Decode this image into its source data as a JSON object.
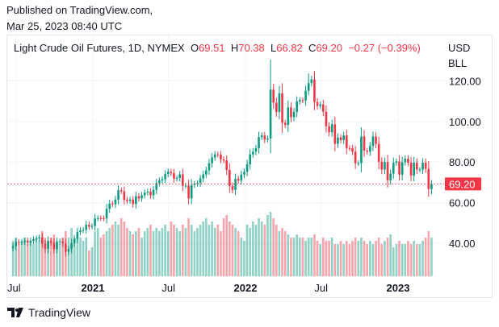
{
  "published": {
    "line1": "Published on TradingView.com,",
    "line2": "Mar 25, 2023 08:40 UTC"
  },
  "legend": {
    "symbol": "Light Crude Oil Futures, 1D, NYMEX",
    "o_label": "O",
    "o": "69.51",
    "h_label": "H",
    "h": "70.38",
    "l_label": "L",
    "l": "66.82",
    "c_label": "C",
    "c": "69.20",
    "change": "−0.27 (−0.39%)"
  },
  "units": {
    "currency": "USD",
    "unit": "BLL"
  },
  "brand": "TradingView",
  "colors": {
    "up": "#089981",
    "down": "#f23645",
    "grid": "#f0f3fa"
  },
  "chart_data": {
    "type": "candlestick",
    "title": "Light Crude Oil Futures, 1D, NYMEX",
    "ylim": [
      30,
      135
    ],
    "y_ticks": [
      {
        "value": 40,
        "label": "40.00"
      },
      {
        "value": 60,
        "label": "60.00"
      },
      {
        "value": 80,
        "label": "80.00"
      },
      {
        "value": 100,
        "label": "100.00"
      },
      {
        "value": 120,
        "label": "120.00"
      }
    ],
    "x_ticks": [
      {
        "date": "2020-07-01",
        "label": "Jul",
        "bold": false
      },
      {
        "date": "2021-01-01",
        "label": "2021",
        "bold": true
      },
      {
        "date": "2021-07-01",
        "label": "Jul",
        "bold": false
      },
      {
        "date": "2022-01-01",
        "label": "2022",
        "bold": true
      },
      {
        "date": "2022-07-01",
        "label": "Jul",
        "bold": false
      },
      {
        "date": "2023-01-01",
        "label": "2023",
        "bold": true
      }
    ],
    "last_price": {
      "value": 69.2,
      "label": "69.20"
    },
    "start_date": "2020-06-26",
    "interval_days": 7,
    "close": [
      38.5,
      40.6,
      40.5,
      40.6,
      41.3,
      40.3,
      41.2,
      42.0,
      42.3,
      42.9,
      39.8,
      37.3,
      41.1,
      40.3,
      37.1,
      40.6,
      40.9,
      39.9,
      35.8,
      37.1,
      40.1,
      42.2,
      45.5,
      46.3,
      46.6,
      49.1,
      48.2,
      48.5,
      52.2,
      52.4,
      52.3,
      52.2,
      56.9,
      59.5,
      59.2,
      61.5,
      66.1,
      65.6,
      61.4,
      60.9,
      61.5,
      59.3,
      63.1,
      62.1,
      63.6,
      64.9,
      65.4,
      63.6,
      66.3,
      69.6,
      70.9,
      71.6,
      74.1,
      75.2,
      74.6,
      71.8,
      72.1,
      73.9,
      68.3,
      68.4,
      62.1,
      68.7,
      69.3,
      69.7,
      71.9,
      73.9,
      75.9,
      79.4,
      82.3,
      83.8,
      83.6,
      81.3,
      80.8,
      76.1,
      68.2,
      66.3,
      71.7,
      70.9,
      73.8,
      75.2,
      78.9,
      83.8,
      85.1,
      86.8,
      92.3,
      93.1,
      91.1,
      91.6,
      115.7,
      109.3,
      104.7,
      113.9,
      99.3,
      98.3,
      106.9,
      102.1,
      104.7,
      109.8,
      110.5,
      110.3,
      115.1,
      118.9,
      120.7,
      109.6,
      107.6,
      108.4,
      104.8,
      97.6,
      94.7,
      98.6,
      89.0,
      92.1,
      90.8,
      93.1,
      86.9,
      86.8,
      85.1,
      79.4,
      79.5,
      92.6,
      85.6,
      85.1,
      87.9,
      92.6,
      89.0,
      80.1,
      76.3,
      80.0,
      71.0,
      74.3,
      79.6,
      80.3,
      73.8,
      79.9,
      81.6,
      79.7,
      73.4,
      79.7,
      76.3,
      76.3,
      79.7,
      76.7,
      66.7,
      69.2
    ],
    "high_overrides": {
      "88": 130.5,
      "101": 123.7
    },
    "low_overrides": {
      "143": 64.1
    },
    "volume_relative": [
      0.55,
      0.6,
      0.5,
      0.55,
      0.6,
      0.5,
      0.55,
      0.5,
      0.6,
      0.55,
      0.7,
      0.6,
      0.55,
      0.6,
      0.65,
      0.55,
      0.5,
      0.6,
      0.7,
      0.6,
      0.75,
      0.6,
      0.65,
      0.6,
      0.55,
      0.6,
      0.4,
      0.45,
      0.7,
      0.75,
      0.6,
      0.65,
      0.7,
      0.75,
      0.8,
      0.85,
      0.8,
      0.9,
      0.85,
      0.75,
      0.7,
      0.65,
      0.7,
      0.75,
      0.6,
      0.7,
      0.75,
      0.8,
      0.7,
      0.75,
      0.7,
      0.75,
      0.8,
      0.7,
      0.85,
      0.8,
      0.75,
      0.7,
      0.8,
      0.75,
      0.9,
      0.8,
      0.7,
      0.75,
      0.8,
      0.85,
      0.9,
      0.8,
      0.85,
      0.75,
      0.8,
      0.7,
      0.9,
      0.95,
      0.85,
      0.8,
      0.75,
      0.7,
      0.6,
      0.55,
      0.8,
      0.75,
      0.85,
      0.8,
      0.9,
      0.85,
      0.8,
      0.95,
      1.0,
      0.9,
      0.8,
      0.7,
      0.75,
      0.7,
      0.65,
      0.6,
      0.6,
      0.65,
      0.6,
      0.6,
      0.55,
      0.6,
      0.6,
      0.65,
      0.55,
      0.5,
      0.6,
      0.55,
      0.55,
      0.6,
      0.5,
      0.5,
      0.55,
      0.5,
      0.55,
      0.5,
      0.55,
      0.6,
      0.55,
      0.6,
      0.55,
      0.5,
      0.55,
      0.5,
      0.55,
      0.6,
      0.5,
      0.55,
      0.6,
      0.65,
      0.45,
      0.5,
      0.55,
      0.5,
      0.5,
      0.55,
      0.5,
      0.55,
      0.5,
      0.5,
      0.55,
      0.6,
      0.7,
      0.6
    ]
  }
}
